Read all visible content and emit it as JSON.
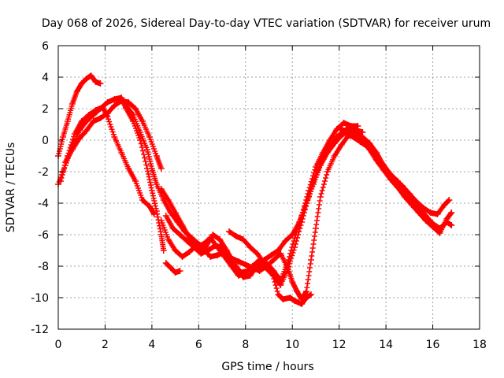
{
  "chart_data": {
    "type": "scatter",
    "title": "Day 068 of 2026, Sidereal Day-to-day VTEC variation (SDTVAR) for receiver urum",
    "xlabel": "GPS time / hours",
    "ylabel": "SDTVAR / TECUs",
    "xlim": [
      0,
      18
    ],
    "ylim": [
      -12,
      6
    ],
    "x_ticks": [
      0,
      2,
      4,
      6,
      8,
      10,
      12,
      14,
      16,
      18
    ],
    "y_ticks": [
      -12,
      -10,
      -8,
      -6,
      -4,
      -2,
      0,
      2,
      4,
      6
    ],
    "x_tick_labels": [
      "0",
      "2",
      "4",
      "6",
      "8",
      "10",
      "12",
      "14",
      "16",
      "18"
    ],
    "y_tick_labels": [
      "-12",
      "-10",
      "-8",
      "-6",
      "-4",
      "-2",
      "0",
      "2",
      "4",
      "6"
    ],
    "grid": true,
    "marker": "+",
    "marker_color": "#ff0000",
    "series": [
      {
        "name": "track-a",
        "points": [
          [
            0.0,
            -1.0
          ],
          [
            0.2,
            0.2
          ],
          [
            0.4,
            1.2
          ],
          [
            0.6,
            2.3
          ],
          [
            0.8,
            3.1
          ],
          [
            1.0,
            3.6
          ],
          [
            1.2,
            3.9
          ],
          [
            1.4,
            4.1
          ],
          [
            1.6,
            3.7
          ],
          [
            1.8,
            3.6
          ]
        ]
      },
      {
        "name": "track-b",
        "points": [
          [
            0.0,
            -2.8
          ],
          [
            0.3,
            -1.6
          ],
          [
            0.6,
            -0.4
          ],
          [
            0.9,
            0.6
          ],
          [
            1.2,
            1.2
          ],
          [
            1.5,
            1.6
          ],
          [
            1.8,
            2.0
          ],
          [
            2.1,
            2.4
          ],
          [
            2.4,
            2.6
          ],
          [
            2.7,
            2.7
          ],
          [
            2.9,
            2.0
          ],
          [
            3.2,
            1.2
          ],
          [
            3.5,
            0.0
          ],
          [
            3.8,
            -1.8
          ],
          [
            4.0,
            -3.2
          ],
          [
            4.2,
            -4.5
          ],
          [
            4.4,
            -6.0
          ],
          [
            4.5,
            -7.0
          ]
        ]
      },
      {
        "name": "track-c",
        "points": [
          [
            0.1,
            -2.6
          ],
          [
            0.4,
            -1.0
          ],
          [
            0.7,
            0.4
          ],
          [
            1.0,
            1.2
          ],
          [
            1.3,
            1.6
          ],
          [
            1.6,
            1.9
          ],
          [
            1.9,
            2.1
          ],
          [
            2.1,
            1.5
          ],
          [
            2.4,
            0.2
          ],
          [
            2.7,
            -0.8
          ],
          [
            3.0,
            -1.8
          ],
          [
            3.3,
            -2.6
          ],
          [
            3.6,
            -3.8
          ],
          [
            3.9,
            -4.2
          ],
          [
            4.1,
            -4.7
          ]
        ]
      },
      {
        "name": "track-d",
        "points": [
          [
            0.3,
            -1.4
          ],
          [
            0.6,
            -0.6
          ],
          [
            0.9,
            0.1
          ],
          [
            1.2,
            0.6
          ],
          [
            1.5,
            1.2
          ],
          [
            1.8,
            1.4
          ],
          [
            2.1,
            1.7
          ],
          [
            2.4,
            2.2
          ],
          [
            2.7,
            2.5
          ],
          [
            3.0,
            2.4
          ],
          [
            3.3,
            2.0
          ],
          [
            3.6,
            1.2
          ],
          [
            3.9,
            0.2
          ],
          [
            4.2,
            -1.0
          ],
          [
            4.4,
            -1.8
          ]
        ]
      },
      {
        "name": "track-e",
        "points": [
          [
            2.9,
            2.2
          ],
          [
            3.2,
            1.6
          ],
          [
            3.5,
            0.5
          ],
          [
            3.8,
            -0.6
          ],
          [
            4.0,
            -1.8
          ],
          [
            4.2,
            -2.8
          ],
          [
            4.5,
            -3.8
          ],
          [
            4.8,
            -4.6
          ],
          [
            5.1,
            -5.2
          ],
          [
            5.4,
            -5.8
          ],
          [
            5.7,
            -6.2
          ],
          [
            6.0,
            -6.6
          ],
          [
            6.3,
            -6.8
          ],
          [
            6.6,
            -6.0
          ],
          [
            6.9,
            -6.3
          ],
          [
            7.2,
            -7.0
          ],
          [
            7.5,
            -7.8
          ],
          [
            7.8,
            -8.4
          ],
          [
            8.1,
            -8.3
          ],
          [
            8.4,
            -8.0
          ],
          [
            8.7,
            -7.9
          ],
          [
            9.0,
            -8.3
          ],
          [
            9.3,
            -8.8
          ],
          [
            9.5,
            -9.2
          ],
          [
            9.8,
            -8.2
          ],
          [
            10.1,
            -6.8
          ],
          [
            10.4,
            -5.2
          ],
          [
            10.7,
            -3.6
          ],
          [
            11.0,
            -2.2
          ],
          [
            11.3,
            -1.2
          ],
          [
            11.6,
            -0.4
          ],
          [
            11.9,
            0.2
          ],
          [
            12.2,
            0.6
          ],
          [
            12.5,
            0.8
          ],
          [
            12.8,
            0.6
          ],
          [
            13.0,
            0.5
          ]
        ]
      },
      {
        "name": "track-f",
        "points": [
          [
            4.4,
            -3.1
          ],
          [
            4.7,
            -3.8
          ],
          [
            5.0,
            -4.6
          ],
          [
            5.3,
            -5.4
          ],
          [
            5.6,
            -6.2
          ],
          [
            5.9,
            -6.8
          ],
          [
            6.2,
            -6.6
          ],
          [
            6.5,
            -6.2
          ],
          [
            6.8,
            -6.8
          ],
          [
            7.1,
            -7.4
          ],
          [
            7.4,
            -8.0
          ],
          [
            7.7,
            -8.6
          ],
          [
            8.0,
            -8.4
          ],
          [
            8.3,
            -8.0
          ],
          [
            8.6,
            -7.6
          ],
          [
            8.9,
            -7.8
          ],
          [
            9.2,
            -8.3
          ],
          [
            9.5,
            -8.9
          ],
          [
            9.8,
            -7.8
          ],
          [
            10.1,
            -6.2
          ],
          [
            10.4,
            -4.8
          ],
          [
            10.7,
            -3.2
          ],
          [
            11.0,
            -1.7
          ],
          [
            11.3,
            -0.8
          ],
          [
            11.6,
            0.0
          ],
          [
            11.9,
            0.7
          ],
          [
            12.2,
            1.1
          ],
          [
            12.5,
            0.9
          ],
          [
            12.8,
            0.9
          ]
        ]
      },
      {
        "name": "track-g",
        "points": [
          [
            4.6,
            -4.8
          ],
          [
            4.9,
            -5.6
          ],
          [
            5.2,
            -6.0
          ],
          [
            5.5,
            -6.4
          ],
          [
            5.8,
            -6.8
          ],
          [
            6.1,
            -7.2
          ],
          [
            6.4,
            -7.0
          ],
          [
            6.7,
            -6.7
          ],
          [
            7.0,
            -6.8
          ],
          [
            7.3,
            -7.5
          ],
          [
            7.6,
            -8.1
          ],
          [
            7.9,
            -8.7
          ],
          [
            8.2,
            -8.6
          ],
          [
            8.5,
            -8.0
          ],
          [
            8.8,
            -7.6
          ],
          [
            9.1,
            -7.3
          ],
          [
            9.4,
            -7.0
          ],
          [
            9.7,
            -6.4
          ],
          [
            10.0,
            -6.0
          ],
          [
            10.3,
            -5.2
          ],
          [
            10.6,
            -4.0
          ],
          [
            10.9,
            -2.8
          ],
          [
            11.2,
            -1.6
          ],
          [
            11.5,
            -0.8
          ],
          [
            11.8,
            -0.2
          ],
          [
            12.1,
            0.3
          ],
          [
            12.4,
            0.6
          ],
          [
            12.7,
            0.4
          ],
          [
            13.0,
            0.2
          ],
          [
            13.3,
            -0.2
          ],
          [
            13.6,
            -0.8
          ],
          [
            13.9,
            -1.6
          ],
          [
            14.2,
            -2.2
          ],
          [
            14.5,
            -2.6
          ],
          [
            14.8,
            -3.2
          ],
          [
            15.1,
            -3.8
          ],
          [
            15.4,
            -4.3
          ],
          [
            15.7,
            -4.8
          ],
          [
            16.0,
            -5.3
          ],
          [
            16.3,
            -5.6
          ],
          [
            16.6,
            -5.2
          ],
          [
            16.8,
            -5.4
          ]
        ]
      },
      {
        "name": "track-h",
        "points": [
          [
            4.4,
            -5.1
          ],
          [
            4.7,
            -6.3
          ],
          [
            5.0,
            -7.0
          ],
          [
            5.3,
            -7.4
          ],
          [
            5.6,
            -7.1
          ],
          [
            5.9,
            -6.7
          ],
          [
            6.2,
            -6.9
          ],
          [
            6.5,
            -7.4
          ],
          [
            6.8,
            -7.3
          ],
          [
            7.1,
            -7.1
          ],
          [
            7.4,
            -7.5
          ],
          [
            7.7,
            -7.7
          ],
          [
            8.0,
            -7.9
          ],
          [
            8.3,
            -8.1
          ],
          [
            8.6,
            -8.3
          ],
          [
            8.9,
            -8.0
          ],
          [
            9.2,
            -7.6
          ],
          [
            9.5,
            -7.2
          ],
          [
            9.8,
            -8.1
          ],
          [
            10.0,
            -9.0
          ],
          [
            10.2,
            -9.6
          ],
          [
            10.4,
            -10.1
          ],
          [
            10.6,
            -9.6
          ],
          [
            10.8,
            -7.6
          ],
          [
            11.0,
            -5.6
          ],
          [
            11.2,
            -3.6
          ],
          [
            11.5,
            -2.0
          ],
          [
            11.8,
            -1.0
          ],
          [
            12.1,
            -0.3
          ],
          [
            12.4,
            0.3
          ],
          [
            12.7,
            0.2
          ],
          [
            13.0,
            0.0
          ],
          [
            13.3,
            -0.6
          ],
          [
            13.6,
            -1.3
          ],
          [
            13.9,
            -1.9
          ],
          [
            14.2,
            -2.5
          ],
          [
            14.5,
            -3.0
          ],
          [
            14.8,
            -3.6
          ],
          [
            15.1,
            -4.1
          ],
          [
            15.4,
            -4.6
          ],
          [
            15.7,
            -5.1
          ],
          [
            16.0,
            -5.5
          ],
          [
            16.3,
            -5.9
          ],
          [
            16.6,
            -5.0
          ],
          [
            16.8,
            -4.6
          ]
        ]
      },
      {
        "name": "track-i",
        "points": [
          [
            12.0,
            0.8
          ],
          [
            12.3,
            0.5
          ],
          [
            12.6,
            0.2
          ],
          [
            12.9,
            -0.1
          ],
          [
            13.2,
            -0.4
          ],
          [
            13.5,
            -0.9
          ],
          [
            13.8,
            -1.4
          ],
          [
            14.1,
            -2.0
          ],
          [
            14.4,
            -2.5
          ],
          [
            14.7,
            -2.9
          ],
          [
            15.0,
            -3.4
          ],
          [
            15.3,
            -3.9
          ],
          [
            15.6,
            -4.3
          ],
          [
            15.9,
            -4.6
          ],
          [
            16.2,
            -4.7
          ],
          [
            16.5,
            -4.1
          ],
          [
            16.7,
            -3.8
          ]
        ]
      },
      {
        "name": "track-j",
        "points": [
          [
            4.6,
            -7.8
          ],
          [
            4.8,
            -8.1
          ],
          [
            5.0,
            -8.4
          ],
          [
            5.2,
            -8.3
          ]
        ]
      },
      {
        "name": "track-k",
        "points": [
          [
            7.3,
            -5.8
          ],
          [
            7.6,
            -6.1
          ],
          [
            7.9,
            -6.3
          ],
          [
            8.2,
            -6.8
          ],
          [
            8.5,
            -7.2
          ],
          [
            8.8,
            -7.8
          ],
          [
            9.1,
            -8.2
          ],
          [
            9.4,
            -9.8
          ],
          [
            9.6,
            -10.1
          ],
          [
            9.9,
            -10.0
          ],
          [
            10.1,
            -10.2
          ],
          [
            10.4,
            -10.4
          ],
          [
            10.6,
            -10.0
          ],
          [
            10.8,
            -9.8
          ]
        ]
      }
    ]
  }
}
